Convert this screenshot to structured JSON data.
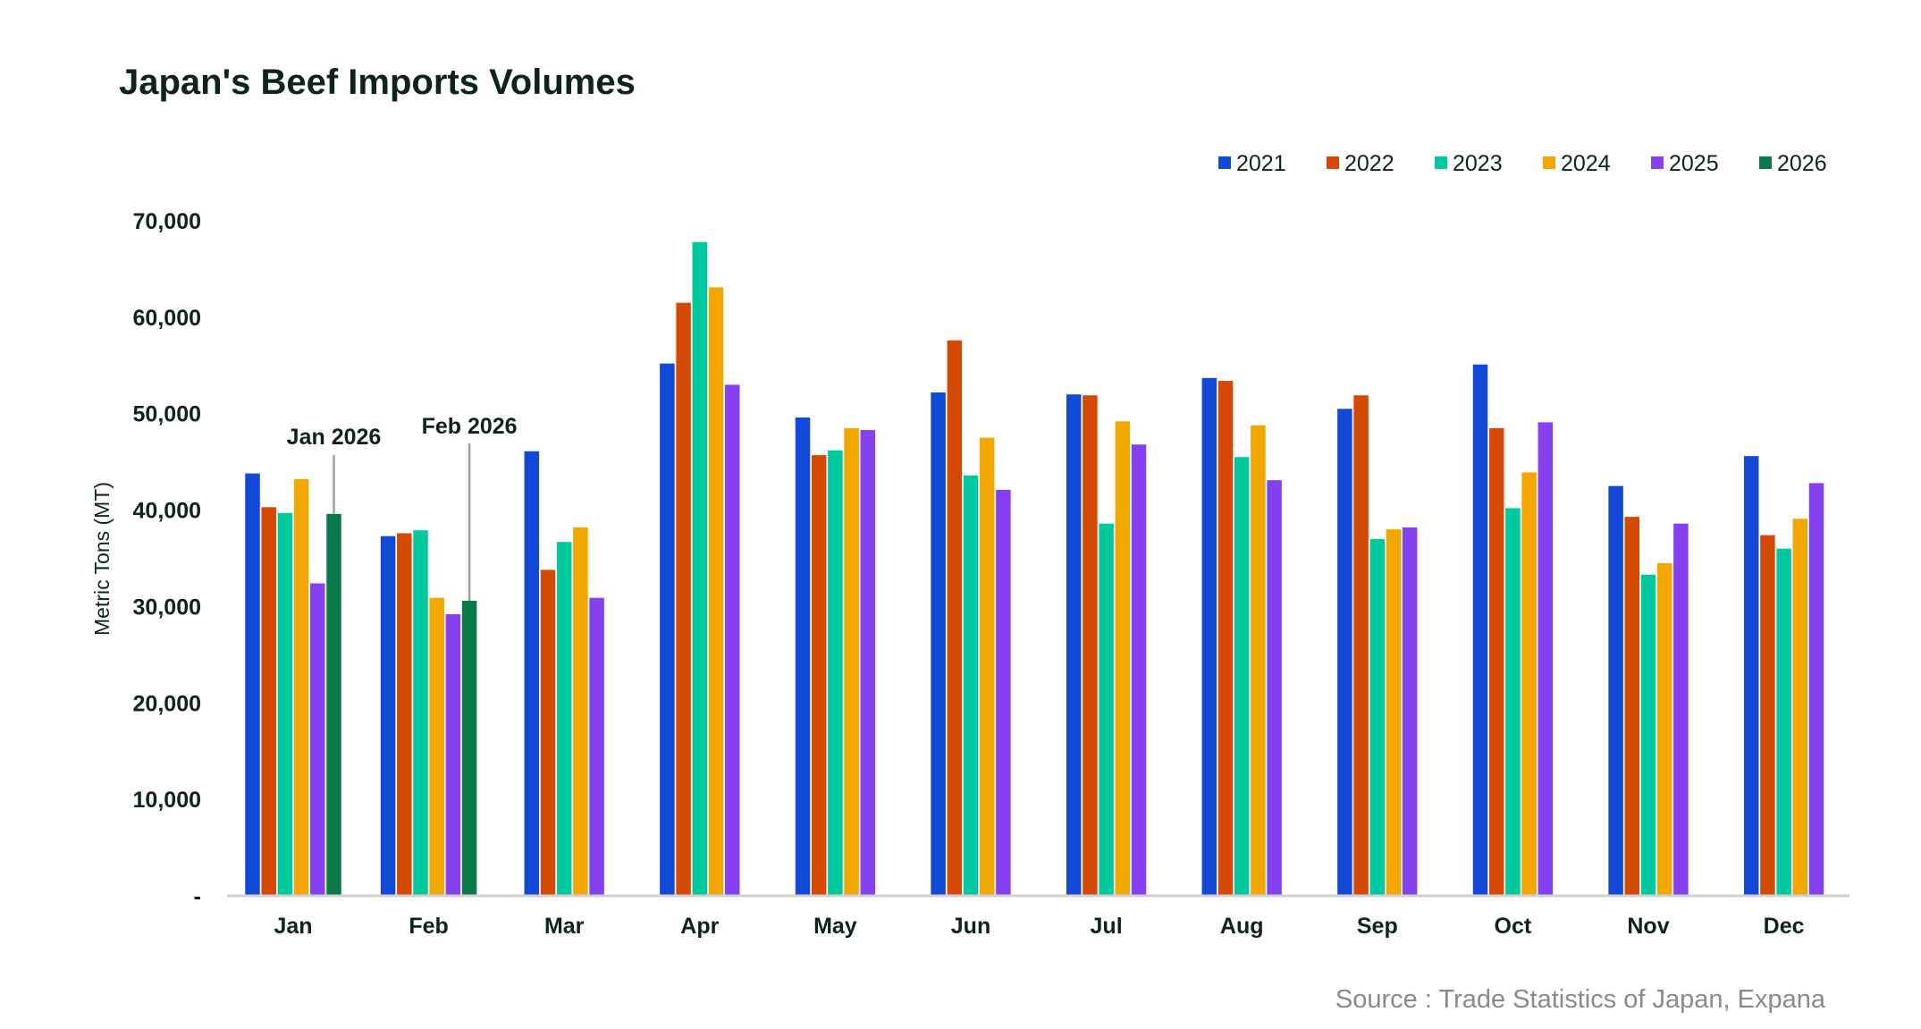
{
  "chart_data": {
    "type": "bar",
    "title": "Japan's Beef Imports Volumes",
    "xlabel": "",
    "ylabel": "Metric Tons (MT)",
    "ylim": [
      0,
      70000
    ],
    "yticks": [
      0,
      10000,
      20000,
      30000,
      40000,
      50000,
      60000,
      70000
    ],
    "ytick_labels": [
      "-",
      "10,000",
      "20,000",
      "30,000",
      "40,000",
      "50,000",
      "60,000",
      "70,000"
    ],
    "grid": false,
    "legend_position": "top-right",
    "categories": [
      "Jan",
      "Feb",
      "Mar",
      "Apr",
      "May",
      "Jun",
      "Jul",
      "Aug",
      "Sep",
      "Oct",
      "Nov",
      "Dec"
    ],
    "series": [
      {
        "name": "2021",
        "color": "#1249d6",
        "values": [
          43800,
          37300,
          46100,
          55200,
          49600,
          52200,
          52000,
          53700,
          50500,
          55100,
          42500,
          45600
        ]
      },
      {
        "name": "2022",
        "color": "#d44a04",
        "values": [
          40300,
          37600,
          33800,
          61500,
          45700,
          57600,
          51900,
          53400,
          51900,
          48500,
          39300,
          37400
        ]
      },
      {
        "name": "2023",
        "color": "#00c9a0",
        "values": [
          39700,
          37900,
          36700,
          67800,
          46200,
          43600,
          38600,
          45500,
          37000,
          40200,
          33300,
          36000
        ]
      },
      {
        "name": "2024",
        "color": "#f2a600",
        "values": [
          43200,
          30900,
          38200,
          63100,
          48500,
          47500,
          49200,
          48800,
          38000,
          43900,
          34500,
          39100
        ]
      },
      {
        "name": "2025",
        "color": "#8540f0",
        "values": [
          32400,
          29200,
          30900,
          53000,
          48300,
          42100,
          46800,
          43100,
          38200,
          49100,
          38600,
          42800
        ]
      },
      {
        "name": "2026",
        "color": "#0b7a4b",
        "values": [
          39600,
          30600,
          null,
          null,
          null,
          null,
          null,
          null,
          null,
          null,
          null,
          null
        ]
      }
    ],
    "annotations": [
      {
        "text": "Jan 2026",
        "category": "Jan",
        "series": "2026"
      },
      {
        "text": "Feb 2026",
        "category": "Feb",
        "series": "2026"
      }
    ],
    "source": "Source : Trade Statistics of Japan, Expana"
  }
}
